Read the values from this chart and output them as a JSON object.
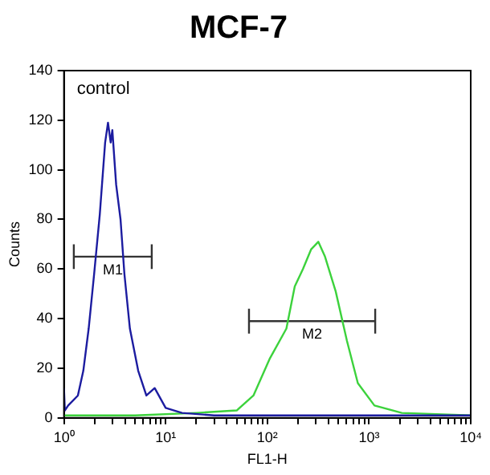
{
  "chart_data": {
    "type": "line",
    "title": "MCF-7",
    "xlabel": "FL1-H",
    "ylabel": "Counts",
    "log": "x",
    "grid": false,
    "legend": false,
    "marker": "none",
    "line_style": "solid",
    "xlim": [
      1,
      10000
    ],
    "ylim": [
      0,
      140
    ],
    "xticks": [
      {
        "value": 1,
        "label": "10⁰"
      },
      {
        "value": 2,
        "label": null
      },
      {
        "value": 3,
        "label": null
      },
      {
        "value": 4,
        "label": null
      },
      {
        "value": 5,
        "label": null
      },
      {
        "value": 6,
        "label": null
      },
      {
        "value": 7,
        "label": null
      },
      {
        "value": 8,
        "label": null
      },
      {
        "value": 9,
        "label": null
      },
      {
        "value": 10,
        "label": "10¹"
      },
      {
        "value": 20,
        "label": null
      },
      {
        "value": 30,
        "label": null
      },
      {
        "value": 40,
        "label": null
      },
      {
        "value": 50,
        "label": null
      },
      {
        "value": 60,
        "label": null
      },
      {
        "value": 70,
        "label": null
      },
      {
        "value": 80,
        "label": null
      },
      {
        "value": 90,
        "label": null
      },
      {
        "value": 100,
        "label": "10²"
      },
      {
        "value": 200,
        "label": null
      },
      {
        "value": 300,
        "label": null
      },
      {
        "value": 400,
        "label": null
      },
      {
        "value": 500,
        "label": null
      },
      {
        "value": 600,
        "label": null
      },
      {
        "value": 700,
        "label": null
      },
      {
        "value": 800,
        "label": null
      },
      {
        "value": 900,
        "label": null
      },
      {
        "value": 1000,
        "label": "10³"
      },
      {
        "value": 2000,
        "label": null
      },
      {
        "value": 3000,
        "label": null
      },
      {
        "value": 4000,
        "label": null
      },
      {
        "value": 5000,
        "label": null
      },
      {
        "value": 6000,
        "label": null
      },
      {
        "value": 7000,
        "label": null
      },
      {
        "value": 8000,
        "label": null
      },
      {
        "value": 9000,
        "label": null
      },
      {
        "value": 10000,
        "label": "10⁴"
      }
    ],
    "yticks": [
      0,
      20,
      40,
      60,
      80,
      100,
      120,
      140
    ],
    "series": [
      {
        "name": "control",
        "color": "#1c1ca0",
        "x": [
          1,
          1.02,
          1.1,
          1.37,
          1.55,
          1.75,
          1.98,
          2.25,
          2.54,
          2.71,
          2.88,
          2.99,
          3.26,
          3.6,
          3.93,
          4.45,
          5.37,
          6.46,
          7.8,
          10,
          14.5,
          30,
          100,
          1000,
          10000
        ],
        "values": [
          12,
          3,
          5,
          9,
          19,
          36,
          58,
          82,
          111,
          119,
          111,
          116,
          94,
          80,
          58,
          36,
          19,
          9,
          12,
          4,
          2,
          1,
          1,
          1,
          1
        ]
      },
      {
        "color": "#3cd23c",
        "x": [
          1,
          5,
          20,
          50,
          73,
          106,
          154,
          186,
          224,
          270,
          317,
          369,
          470,
          607,
          776,
          1130,
          2100,
          10000
        ],
        "values": [
          1,
          1,
          2,
          3,
          9,
          24,
          36,
          53,
          60,
          68,
          71,
          65,
          51,
          31,
          14,
          5,
          2,
          1
        ]
      },
      {
        "name": "M1",
        "color": "#333333",
        "x": [
          1.25,
          7.3
        ],
        "values": [
          65,
          65
        ],
        "errors": [
          5,
          5
        ]
      },
      {
        "name": "M2",
        "color": "#333333",
        "x": [
          66,
          1150
        ],
        "values": [
          39,
          39
        ],
        "errors": [
          5,
          5
        ]
      }
    ]
  }
}
